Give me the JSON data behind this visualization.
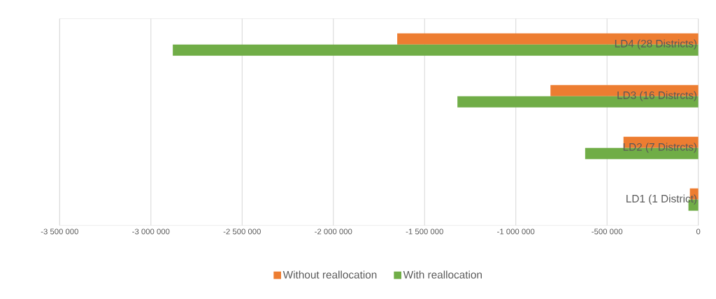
{
  "chart_data": {
    "type": "bar",
    "orientation": "horizontal",
    "categories": [
      "LD4 (28 Districts)",
      "LD3 (16 Distrcts)",
      "LD2 (7 Distrcts)",
      "LD1 (1 District)"
    ],
    "series": [
      {
        "name": "Without reallocation",
        "color": "#ed7d31",
        "values": [
          -1650000,
          -810000,
          -410000,
          -46000
        ]
      },
      {
        "name": "With reallocation",
        "color": "#70ad47",
        "values": [
          -2880000,
          -1320000,
          -620000,
          -54000
        ]
      }
    ],
    "xlim": [
      -3500000,
      0
    ],
    "xticks": [
      {
        "value": -3500000,
        "label": "-3 500 000"
      },
      {
        "value": -3000000,
        "label": "-3 000 000"
      },
      {
        "value": -2500000,
        "label": "-2 500 000"
      },
      {
        "value": -2000000,
        "label": "-2 000 000"
      },
      {
        "value": -1500000,
        "label": "-1 500 000"
      },
      {
        "value": -1000000,
        "label": "-1 000 000"
      },
      {
        "value": -500000,
        "label": "-500 000"
      },
      {
        "value": 0,
        "label": "0"
      }
    ],
    "grid": true,
    "legend": "bottom"
  }
}
